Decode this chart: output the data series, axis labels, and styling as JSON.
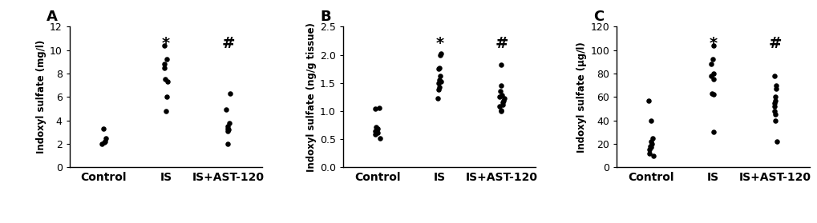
{
  "panels": [
    {
      "label": "A",
      "ylabel": "Indoxyl sulfate (mg/l)",
      "ylim": [
        0,
        12
      ],
      "yticks": [
        0,
        2,
        4,
        6,
        8,
        10,
        12
      ],
      "categories": [
        "Control",
        "IS",
        "IS+AST-120"
      ],
      "data": {
        "Control": [
          3.3,
          2.5,
          2.2,
          2.1,
          2.0
        ],
        "IS": [
          10.4,
          9.2,
          8.8,
          8.5,
          7.5,
          7.3,
          6.0,
          4.8
        ],
        "IS+AST-120": [
          6.3,
          4.9,
          3.8,
          3.5,
          3.3,
          3.2,
          3.1,
          2.0
        ]
      },
      "sig": {
        "IS": "*",
        "IS+AST-120": "#"
      }
    },
    {
      "label": "B",
      "ylabel": "Indoxyl sulfate (ng/g tissue)",
      "ylim": [
        0.0,
        2.5
      ],
      "yticks": [
        0.0,
        0.5,
        1.0,
        1.5,
        2.0,
        2.5
      ],
      "categories": [
        "Control",
        "IS",
        "IS+AST-120"
      ],
      "data": {
        "Control": [
          1.06,
          1.04,
          0.72,
          0.68,
          0.65,
          0.62,
          0.58,
          0.52
        ],
        "IS": [
          2.02,
          2.0,
          1.77,
          1.75,
          1.62,
          1.55,
          1.53,
          1.5,
          1.42,
          1.38,
          1.22
        ],
        "IS+AST-120": [
          1.82,
          1.45,
          1.35,
          1.28,
          1.25,
          1.22,
          1.18,
          1.15,
          1.12,
          1.08,
          1.02,
          1.0
        ]
      },
      "sig": {
        "IS": "*",
        "IS+AST-120": "#"
      }
    },
    {
      "label": "C",
      "ylabel": "Indoxyl sulfate (μg/l)",
      "ylim": [
        0,
        120
      ],
      "yticks": [
        0,
        20,
        40,
        60,
        80,
        100,
        120
      ],
      "categories": [
        "Control",
        "IS",
        "IS+AST-120"
      ],
      "data": {
        "Control": [
          57,
          40,
          25,
          22,
          20,
          18,
          17,
          15,
          12,
          10
        ],
        "IS": [
          104,
          92,
          88,
          80,
          78,
          75,
          63,
          62,
          30
        ],
        "IS+AST-120": [
          78,
          70,
          67,
          60,
          57,
          55,
          52,
          48,
          45,
          40,
          22
        ]
      },
      "sig": {
        "IS": "*",
        "IS+AST-120": "#"
      }
    }
  ],
  "dot_color": "#000000",
  "dot_size": 22,
  "background_color": "#ffffff",
  "label_fontsize": 13,
  "tick_fontsize": 9,
  "ylabel_fontsize": 8.5,
  "xlabel_fontsize": 10,
  "sig_fontsize": 14
}
